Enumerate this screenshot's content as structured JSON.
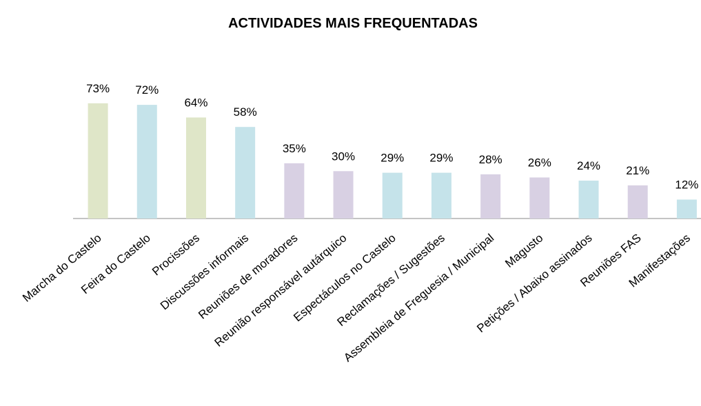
{
  "chart_data": {
    "type": "bar",
    "title": "ACTIVIDADES MAIS FREQUENTADAS",
    "categories": [
      "Marcha do Castelo",
      "Feira do Castelo",
      "Procissões",
      "Discussões informais",
      "Reuniões de moradores",
      "Reunião responsável autárquico",
      "Espectáculos no Castelo",
      "Reclamações / Sugestões",
      "Assembleia de Freguesia / Municipal",
      "Magusto",
      "Petições / Abaixo assinados",
      "Reuniões FAS",
      "Manifestações"
    ],
    "values": [
      73,
      72,
      64,
      58,
      35,
      30,
      29,
      29,
      28,
      26,
      24,
      21,
      12
    ],
    "value_labels": [
      "73%",
      "72%",
      "64%",
      "58%",
      "35%",
      "30%",
      "29%",
      "29%",
      "28%",
      "26%",
      "24%",
      "21%",
      "12%"
    ],
    "colors": [
      "#dfe6c8",
      "#c5e3ea",
      "#dfe6c8",
      "#c5e3ea",
      "#d8d0e3",
      "#d8d0e3",
      "#c5e3ea",
      "#c5e3ea",
      "#d8d0e3",
      "#d8d0e3",
      "#c5e3ea",
      "#d8d0e3",
      "#c5e3ea"
    ],
    "ylim": [
      0,
      100
    ]
  }
}
